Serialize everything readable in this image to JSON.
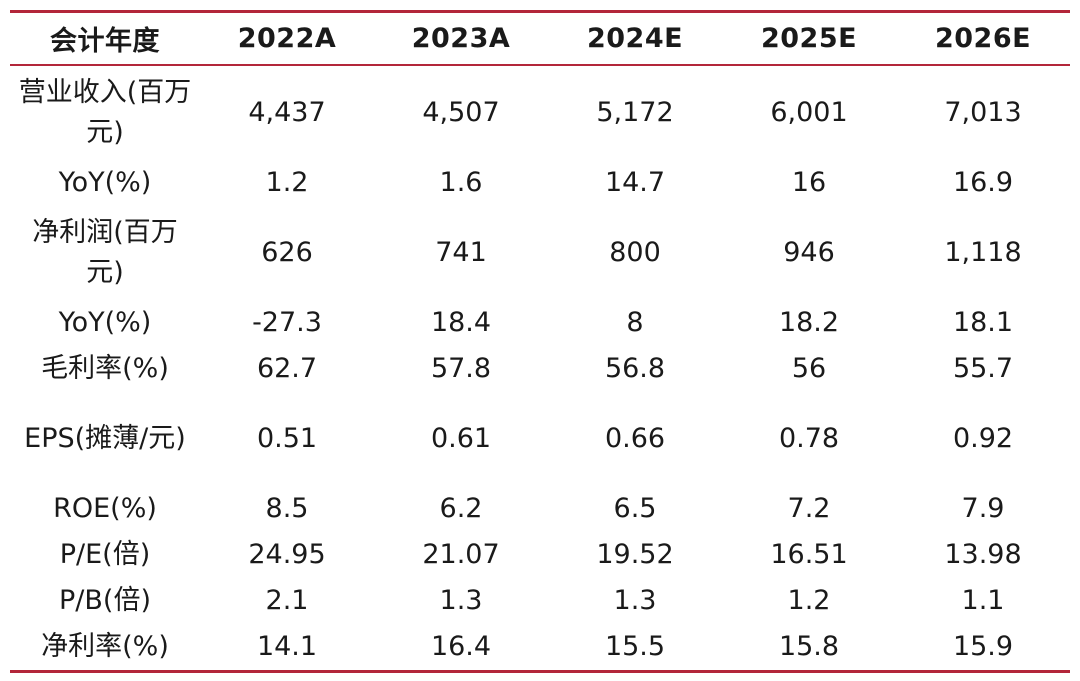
{
  "table": {
    "header": {
      "label": "会计年度",
      "years": [
        "2022A",
        "2023A",
        "2024E",
        "2025E",
        "2026E"
      ]
    },
    "rows": [
      {
        "label": "营业收入(百万元)",
        "values": [
          "4,437",
          "4,507",
          "5,172",
          "6,001",
          "7,013"
        ]
      },
      {
        "label": "YoY(%)",
        "values": [
          "1.2",
          "1.6",
          "14.7",
          "16",
          "16.9"
        ]
      },
      {
        "label": "净利润(百万元)",
        "values": [
          "626",
          "741",
          "800",
          "946",
          "1,118"
        ]
      },
      {
        "label": "YoY(%)",
        "values": [
          "-27.3",
          "18.4",
          "8",
          "18.2",
          "18.1"
        ]
      },
      {
        "label": "毛利率(%)",
        "values": [
          "62.7",
          "57.8",
          "56.8",
          "56",
          "55.7"
        ]
      },
      {
        "label": "EPS(摊薄/元)",
        "values": [
          "0.51",
          "0.61",
          "0.66",
          "0.78",
          "0.92"
        ]
      },
      {
        "label": "ROE(%)",
        "values": [
          "8.5",
          "6.2",
          "6.5",
          "7.2",
          "7.9"
        ]
      },
      {
        "label": "P/E(倍)",
        "values": [
          "24.95",
          "21.07",
          "19.52",
          "16.51",
          "13.98"
        ]
      },
      {
        "label": "P/B(倍)",
        "values": [
          "2.1",
          "1.3",
          "1.3",
          "1.2",
          "1.1"
        ]
      },
      {
        "label": "净利率(%)",
        "values": [
          "14.1",
          "16.4",
          "15.5",
          "15.8",
          "15.9"
        ]
      }
    ]
  },
  "colors": {
    "rule": "#b3263a",
    "text": "#1a1a1a"
  }
}
